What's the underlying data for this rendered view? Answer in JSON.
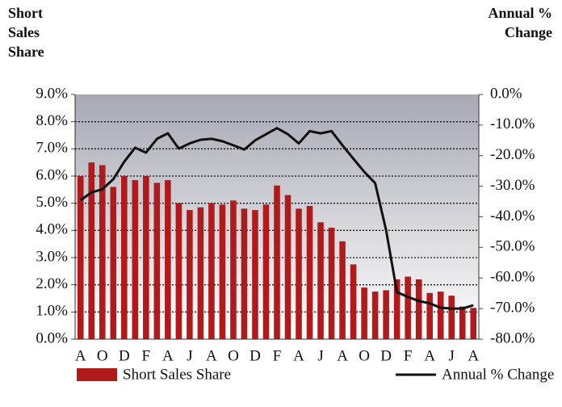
{
  "chart_data": {
    "type": "combo",
    "y_label": "Short Sales Share",
    "y2_label": "Annual % Change",
    "categories": [
      "A",
      null,
      "O",
      null,
      "D",
      null,
      "F",
      null,
      "A",
      null,
      "J",
      null,
      "A",
      null,
      "O",
      null,
      "D",
      null,
      "F",
      null,
      "A",
      null,
      "J",
      null,
      "A",
      null,
      "O",
      null,
      "D",
      null,
      "F",
      null,
      "A",
      null,
      "J",
      null,
      "A"
    ],
    "series": [
      {
        "name": "Short Sales Share",
        "type": "bar",
        "color": "#b01a1a",
        "values": [
          6.0,
          6.5,
          6.4,
          5.6,
          6.0,
          5.85,
          6.0,
          5.75,
          5.85,
          5.0,
          4.75,
          4.85,
          5.0,
          4.95,
          5.1,
          4.8,
          4.75,
          4.95,
          5.65,
          5.3,
          4.8,
          4.9,
          4.3,
          4.1,
          3.6,
          2.75,
          1.9,
          1.75,
          1.8,
          2.2,
          2.3,
          2.2,
          1.7,
          1.75,
          1.6,
          1.2,
          1.15
        ]
      },
      {
        "name": "Annual % Change",
        "type": "line",
        "color": "#111111",
        "axis": "y2",
        "values": [
          -34.6,
          -32,
          -31,
          -27.7,
          -22,
          -17.4,
          -19,
          -14.5,
          -12.7,
          -17.7,
          -16,
          -14.8,
          -14.5,
          -15.3,
          -16.6,
          -18,
          -15,
          -13,
          -11,
          -13,
          -16,
          -12,
          -12.7,
          -12,
          -16.6,
          -21,
          -25.3,
          -29,
          -44.3,
          -64.6,
          -66.2,
          -67.5,
          -68.3,
          -69.7,
          -70,
          -70,
          -68.9
        ]
      }
    ],
    "ylim": [
      0,
      9
    ],
    "yticks": [
      {
        "value": 0,
        "label": "0.0%"
      },
      {
        "value": 1,
        "label": "1.0%"
      },
      {
        "value": 2,
        "label": "2.0%"
      },
      {
        "value": 3,
        "label": "3.0%"
      },
      {
        "value": 4,
        "label": "4.0%"
      },
      {
        "value": 5,
        "label": "5.0%"
      },
      {
        "value": 6,
        "label": "6.0%"
      },
      {
        "value": 7,
        "label": "7.0%"
      },
      {
        "value": 8,
        "label": "8.0%"
      },
      {
        "value": 9,
        "label": "9.0%"
      }
    ],
    "y2lim": [
      -80,
      0
    ],
    "y2ticks": [
      {
        "value": -80,
        "label": "-80.0%"
      },
      {
        "value": -70,
        "label": "-70.0%"
      },
      {
        "value": -60,
        "label": "-60.0%"
      },
      {
        "value": -50,
        "label": "-50.0%"
      },
      {
        "value": -40,
        "label": "-40.0%"
      },
      {
        "value": -30,
        "label": "-30.0%"
      },
      {
        "value": -20,
        "label": "-20.0%"
      },
      {
        "value": -10,
        "label": "-10.0%"
      },
      {
        "value": 0,
        "label": "0.0%"
      }
    ],
    "grid": true
  }
}
